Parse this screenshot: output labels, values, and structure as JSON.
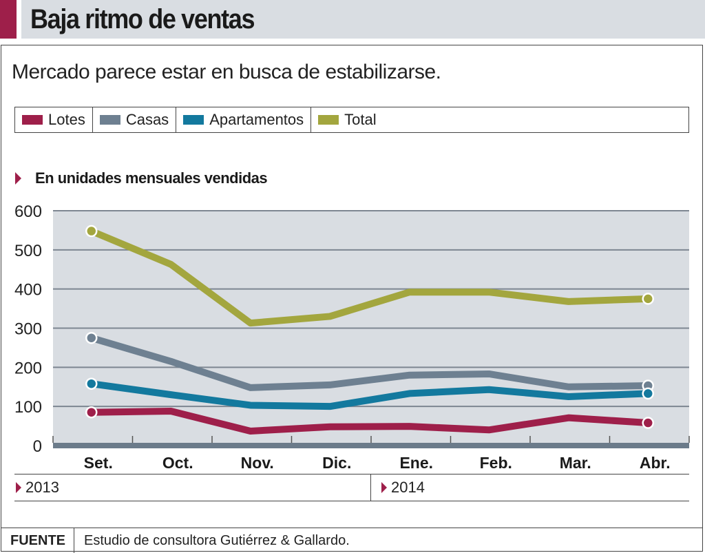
{
  "title": "Baja ritmo de ventas",
  "subtitle": "Mercado parece estar en busca de estabilizarse.",
  "unit_label": "En unidades mensuales vendidas",
  "years": [
    "2013",
    "2014"
  ],
  "source": {
    "label": "FUENTE",
    "text": "Estudio de consultora Gutiérrez & Gallardo."
  },
  "colors": {
    "accent": "#9e1f4a",
    "plot_bg": "#d9dde2",
    "grid": "#7d8691",
    "axis": "#6b7b8a"
  },
  "chart_data": {
    "type": "line",
    "title": "Baja ritmo de ventas",
    "subtitle": "Mercado parece estar en busca de estabilizarse.",
    "ylabel": "En unidades mensuales vendidas",
    "xlabel": "",
    "categories": [
      "Set.",
      "Oct.",
      "Nov.",
      "Dic.",
      "Ene.",
      "Feb.",
      "Mar.",
      "Abr."
    ],
    "yticks": [
      0,
      100,
      200,
      300,
      400,
      500,
      600
    ],
    "ylim": [
      0,
      600
    ],
    "grid": true,
    "legend_position": "top",
    "series": [
      {
        "name": "Lotes",
        "color": "#9e1f4a",
        "values": [
          85,
          88,
          37,
          48,
          49,
          40,
          71,
          58
        ]
      },
      {
        "name": "Casas",
        "color": "#6e8091",
        "values": [
          275,
          215,
          148,
          155,
          180,
          183,
          150,
          153
        ]
      },
      {
        "name": "Apartamentos",
        "color": "#13799e",
        "values": [
          158,
          130,
          103,
          100,
          133,
          143,
          125,
          133
        ]
      },
      {
        "name": "Total",
        "color": "#a3a63e",
        "values": [
          548,
          463,
          313,
          330,
          392,
          392,
          368,
          375
        ]
      }
    ]
  }
}
